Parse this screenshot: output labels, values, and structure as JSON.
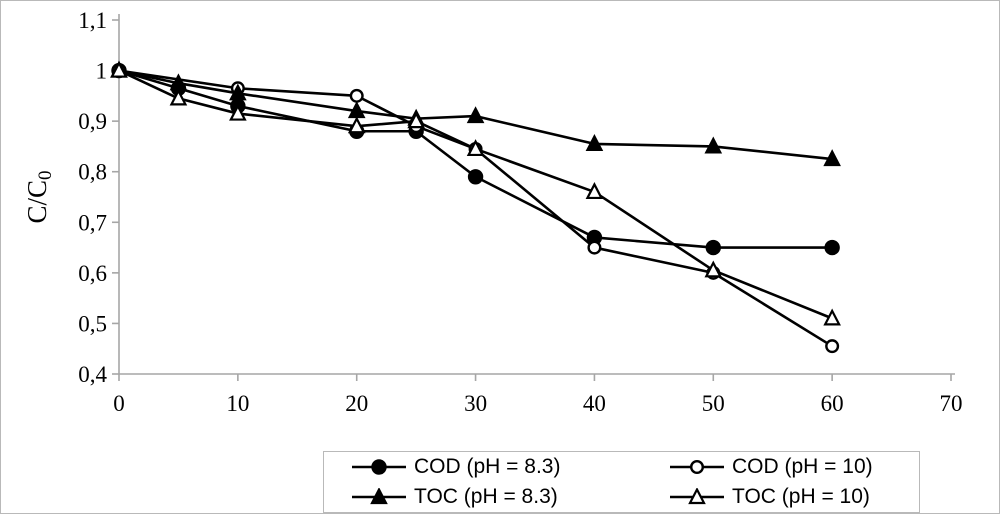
{
  "chart_data": {
    "type": "line",
    "title": "",
    "ylabel": "C/C",
    "ylabel_subscript": "0",
    "xlabel": "",
    "xlim": [
      0,
      70
    ],
    "ylim": [
      0.4,
      1.1
    ],
    "x_ticks": [
      0,
      10,
      20,
      30,
      40,
      50,
      60,
      70
    ],
    "x_tick_labels": [
      "0",
      "10",
      "20",
      "30",
      "40",
      "50",
      "60",
      "70"
    ],
    "y_ticks": [
      1.1,
      1.0,
      0.9,
      0.8,
      0.7,
      0.6,
      0.5,
      0.4
    ],
    "y_tick_labels": [
      "1,1",
      "1",
      "0,9",
      "0,8",
      "0,7",
      "0,6",
      "0,5",
      "0,4"
    ],
    "grid": false,
    "legend_position": "bottom-center",
    "line_color": "#000000",
    "axis_color": "#a6a6a6",
    "series": [
      {
        "name": "COD (pH = 8.3)",
        "marker": "circle",
        "fill": "filled",
        "points": [
          [
            0,
            1.0
          ],
          [
            5,
            0.965
          ],
          [
            10,
            0.93
          ],
          [
            20,
            0.88
          ],
          [
            25,
            0.88
          ],
          [
            30,
            0.79
          ],
          [
            40,
            0.67
          ],
          [
            50,
            0.65
          ],
          [
            60,
            0.65
          ]
        ]
      },
      {
        "name": "COD (pH = 10)",
        "marker": "circle",
        "fill": "open",
        "points": [
          [
            0,
            1.0
          ],
          [
            10,
            0.965
          ],
          [
            20,
            0.95
          ],
          [
            25,
            0.89
          ],
          [
            30,
            0.845
          ],
          [
            40,
            0.65
          ],
          [
            50,
            0.6
          ],
          [
            60,
            0.455
          ]
        ]
      },
      {
        "name": "TOC (pH = 8.3)",
        "marker": "triangle",
        "fill": "filled",
        "points": [
          [
            0,
            1.0
          ],
          [
            5,
            0.975
          ],
          [
            10,
            0.955
          ],
          [
            20,
            0.92
          ],
          [
            25,
            0.905
          ],
          [
            30,
            0.91
          ],
          [
            40,
            0.855
          ],
          [
            50,
            0.85
          ],
          [
            60,
            0.825
          ]
        ]
      },
      {
        "name": "TOC (pH = 10)",
        "marker": "triangle",
        "fill": "open",
        "points": [
          [
            0,
            1.0
          ],
          [
            5,
            0.945
          ],
          [
            10,
            0.915
          ],
          [
            20,
            0.89
          ],
          [
            25,
            0.9
          ],
          [
            30,
            0.845
          ],
          [
            40,
            0.76
          ],
          [
            50,
            0.605
          ],
          [
            60,
            0.51
          ]
        ]
      }
    ]
  }
}
